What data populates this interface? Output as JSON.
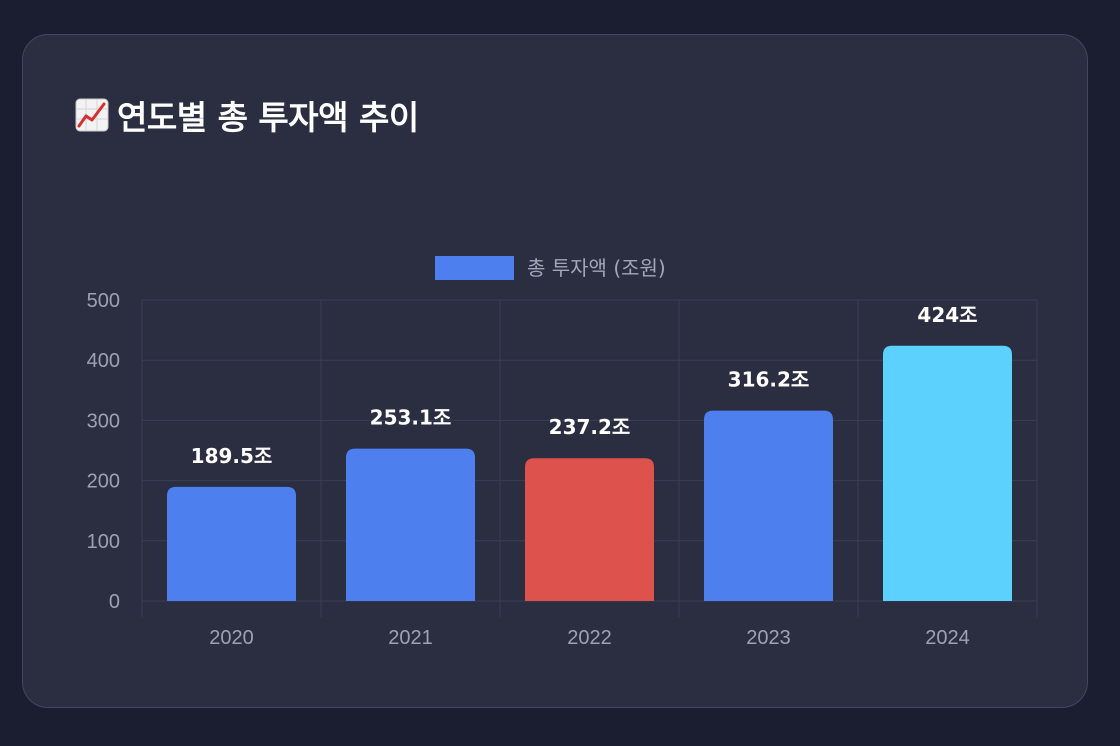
{
  "title": {
    "icon": "chart-increasing-icon",
    "text": "연도별 총 투자액 추이"
  },
  "colors": {
    "background": "#1b1e31",
    "card": "#2b2e41",
    "bar_default": "#4d7fee",
    "bar_decrease": "#dd524d",
    "bar_latest": "#5dd1fd",
    "grid": "#3b3e54"
  },
  "chart_data": {
    "type": "bar",
    "title": "연도별 총 투자액 추이",
    "categories": [
      "2020",
      "2021",
      "2022",
      "2023",
      "2024"
    ],
    "series": [
      {
        "name": "총 투자액 (조원)",
        "values": [
          189.5,
          253.1,
          237.2,
          316.2,
          424
        ],
        "data_labels": [
          "189.5조",
          "253.1조",
          "237.2조",
          "316.2조",
          "424조"
        ],
        "colors": [
          "#4d7fee",
          "#4d7fee",
          "#dd524d",
          "#4d7fee",
          "#5dd1fd"
        ]
      }
    ],
    "xlabel": "",
    "ylabel": "",
    "ylim": [
      0,
      500
    ],
    "yticks": [
      0,
      100,
      200,
      300,
      400,
      500
    ],
    "grid": true,
    "legend": "top-center",
    "legend_color": "#4d7fee"
  }
}
